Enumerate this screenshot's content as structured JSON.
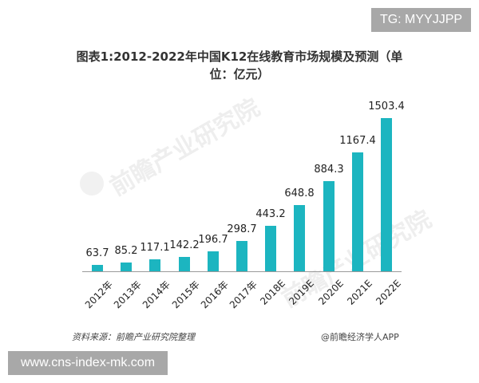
{
  "badges": {
    "top_right": "TG: MYYJJPP",
    "bottom_left": "www.cns-index-mk.com"
  },
  "watermark": "前瞻产业研究院",
  "chart_data": {
    "type": "bar",
    "title": "图表1:2012-2022年中国K12在线教育市场规模及预测（单位：亿元）",
    "title_line1": "图表1:2012-2022年中国K12在线教育市场规模及预测（单",
    "title_line2": "位：亿元）",
    "xlabel": "",
    "ylabel": "",
    "unit": "亿元",
    "categories": [
      "2012年",
      "2013年",
      "2014年",
      "2015年",
      "2016年",
      "2017年",
      "2018E",
      "2019E",
      "2020E",
      "2021E",
      "2022E"
    ],
    "values": [
      63.7,
      85.2,
      117.1,
      142.2,
      196.7,
      298.7,
      443.2,
      648.8,
      884.3,
      1167.4,
      1503.4
    ],
    "value_labels": [
      "63.7",
      "85.2",
      "117.1",
      "142.2",
      "196.7",
      "298.7",
      "443.2",
      "648.8",
      "884.3",
      "1167.4",
      "1503.4"
    ],
    "ylim": [
      0,
      1503.4
    ],
    "grid": false,
    "legend": null,
    "bar_color": "#1cb5c0"
  },
  "footer": {
    "source": "资料来源：前瞻产业研究院整理",
    "credit": "@前瞻经济学人APP"
  }
}
